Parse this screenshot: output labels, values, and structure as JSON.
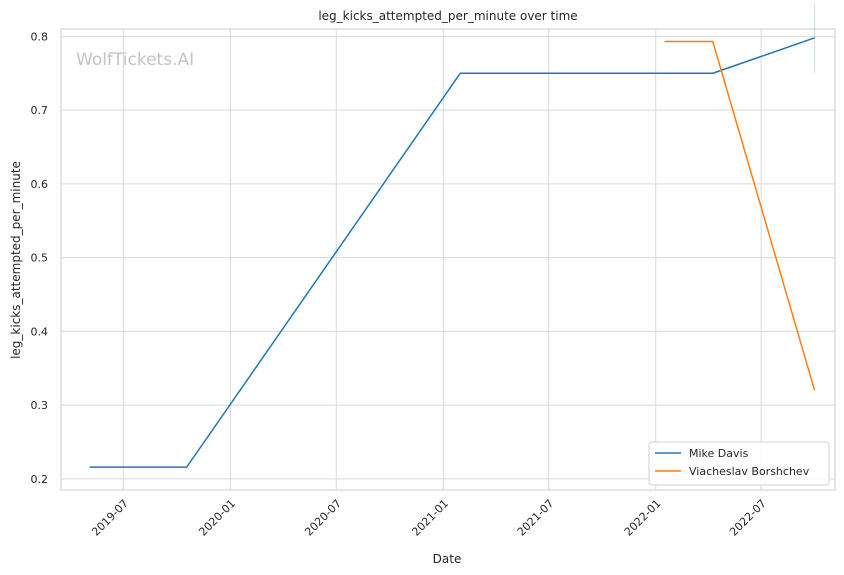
{
  "chart_data": {
    "type": "line",
    "title": "leg_kicks_attempted_per_minute over time",
    "xlabel": "Date",
    "ylabel": "leg_kicks_attempted_per_minute",
    "watermark": "WolfTickets.AI",
    "x_ticks": [
      "2019-07",
      "2020-01",
      "2020-07",
      "2021-01",
      "2021-07",
      "2022-01",
      "2022-07"
    ],
    "y_ticks": [
      0.2,
      0.3,
      0.4,
      0.5,
      0.6,
      0.7,
      0.8
    ],
    "xlim": [
      "2019-03-16",
      "2022-11-05"
    ],
    "ylim": [
      0.185,
      0.81
    ],
    "grid": true,
    "legend_position": "bottom-right",
    "series": [
      {
        "name": "Mike Davis",
        "color": "#1f77b4",
        "points": [
          {
            "x": "2019-05-04",
            "y": 0.216
          },
          {
            "x": "2019-10-18",
            "y": 0.216
          },
          {
            "x": "2021-01-30",
            "y": 0.75
          },
          {
            "x": "2022-04-09",
            "y": 0.75
          },
          {
            "x": "2022-10-01",
            "y": 0.798
          }
        ]
      },
      {
        "name": "Viacheslav Borshchev",
        "color": "#ff7f0e",
        "points": [
          {
            "x": "2022-01-16",
            "y": 0.793
          },
          {
            "x": "2022-04-09",
            "y": 0.793
          },
          {
            "x": "2022-10-01",
            "y": 0.32
          }
        ]
      }
    ],
    "error_bars": [
      {
        "x": "2022-10-01",
        "low": 0.75,
        "high": 0.845,
        "color": "#1f77b4"
      }
    ]
  }
}
